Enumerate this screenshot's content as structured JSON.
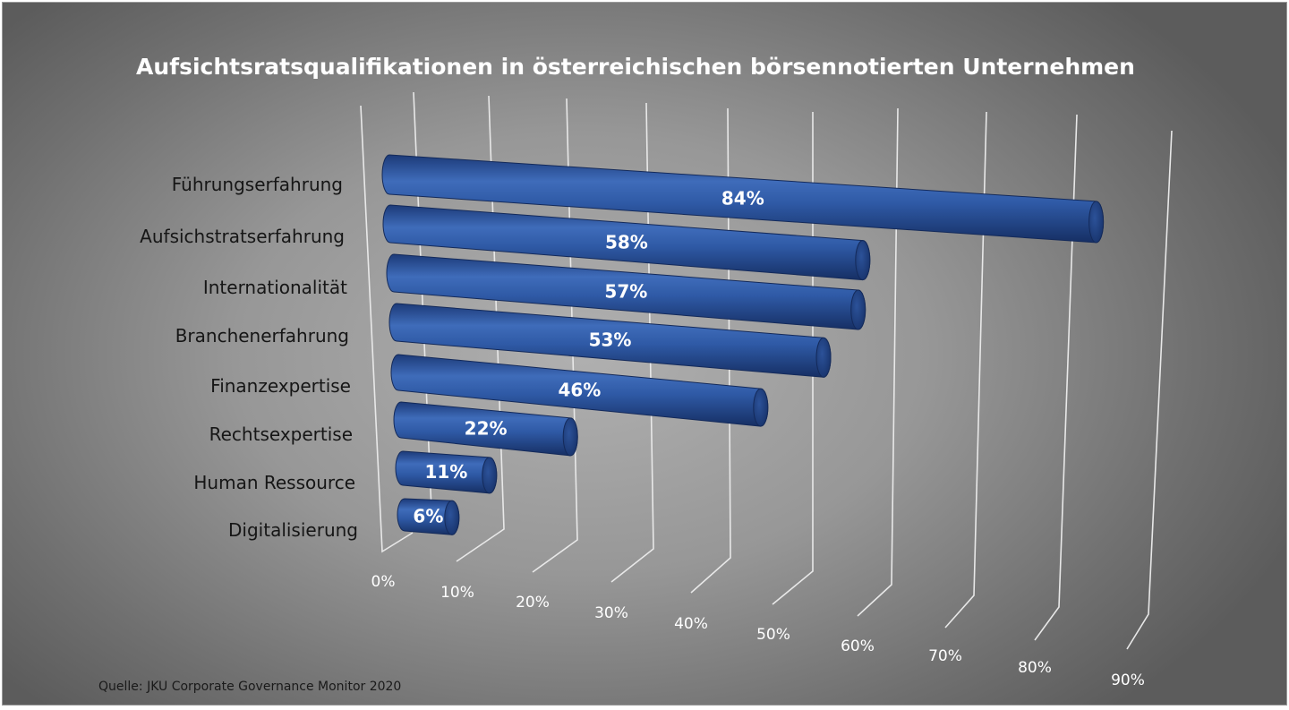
{
  "chart_data": {
    "type": "bar",
    "orientation": "horizontal",
    "style": "3d-cylinder",
    "title": "Aufsichtsratsqualifikationen in österreichischen börsennotierten Unternehmen",
    "categories": [
      "Führungserfahrung",
      "Aufsichstratserfahrung",
      "Internationalität",
      "Branchenerfahrung",
      "Finanzexpertise",
      "Rechtsexpertise",
      "Human Ressource",
      "Digitalisierung"
    ],
    "values": [
      84,
      58,
      57,
      53,
      46,
      22,
      11,
      6
    ],
    "data_labels": [
      "84%",
      "58%",
      "57%",
      "53%",
      "46%",
      "22%",
      "11%",
      "6%"
    ],
    "x_ticks": [
      "0%",
      "10%",
      "20%",
      "30%",
      "40%",
      "50%",
      "60%",
      "70%",
      "80%",
      "90%"
    ],
    "xlim": [
      0,
      90
    ],
    "grid": true,
    "bar_color": "#2b5299",
    "source": "Quelle: JKU Corporate Governance Monitor 2020"
  }
}
